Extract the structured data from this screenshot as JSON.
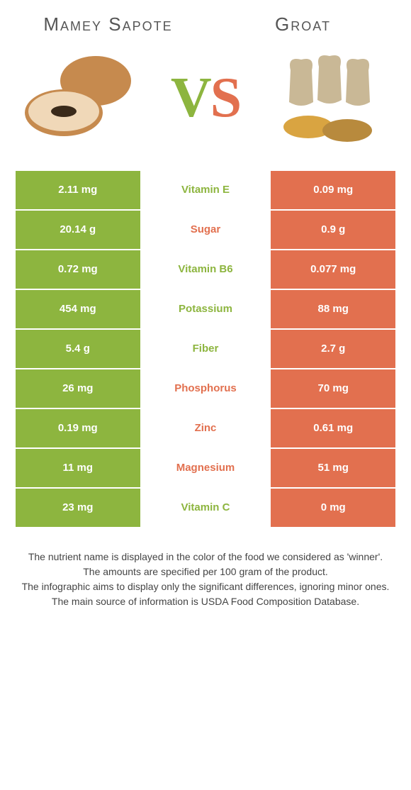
{
  "header": {
    "left_title": "Mamey Sapote",
    "right_title": "Groat",
    "vs_v": "V",
    "vs_s": "S"
  },
  "colors": {
    "left": "#8db53f",
    "right": "#e2704f",
    "left_winner_text": "#8db53f",
    "right_winner_text": "#e2704f"
  },
  "nutrients": [
    {
      "name": "Vitamin E",
      "left": "2.11 mg",
      "right": "0.09 mg",
      "winner": "left"
    },
    {
      "name": "Sugar",
      "left": "20.14 g",
      "right": "0.9 g",
      "winner": "right"
    },
    {
      "name": "Vitamin B6",
      "left": "0.72 mg",
      "right": "0.077 mg",
      "winner": "left"
    },
    {
      "name": "Potassium",
      "left": "454 mg",
      "right": "88 mg",
      "winner": "left"
    },
    {
      "name": "Fiber",
      "left": "5.4 g",
      "right": "2.7 g",
      "winner": "left"
    },
    {
      "name": "Phosphorus",
      "left": "26 mg",
      "right": "70 mg",
      "winner": "right"
    },
    {
      "name": "Zinc",
      "left": "0.19 mg",
      "right": "0.61 mg",
      "winner": "right"
    },
    {
      "name": "Magnesium",
      "left": "11 mg",
      "right": "51 mg",
      "winner": "right"
    },
    {
      "name": "Vitamin C",
      "left": "23 mg",
      "right": "0 mg",
      "winner": "left"
    }
  ],
  "footer": {
    "line1": "The nutrient name is displayed in the color of the food we considered as 'winner'.",
    "line2": "The amounts are specified per 100 gram of the product.",
    "line3": "The infographic aims to display only the significant differences, ignoring minor ones.",
    "line4": "The main source of information is USDA Food Composition Database."
  },
  "illustrations": {
    "left_fruit_body": "#c68a4e",
    "left_fruit_flesh": "#f0d8b8",
    "left_fruit_seed": "#3a2a1a",
    "right_sack": "#c9b896",
    "right_grain1": "#d9a441",
    "right_grain2": "#b88a3d"
  }
}
